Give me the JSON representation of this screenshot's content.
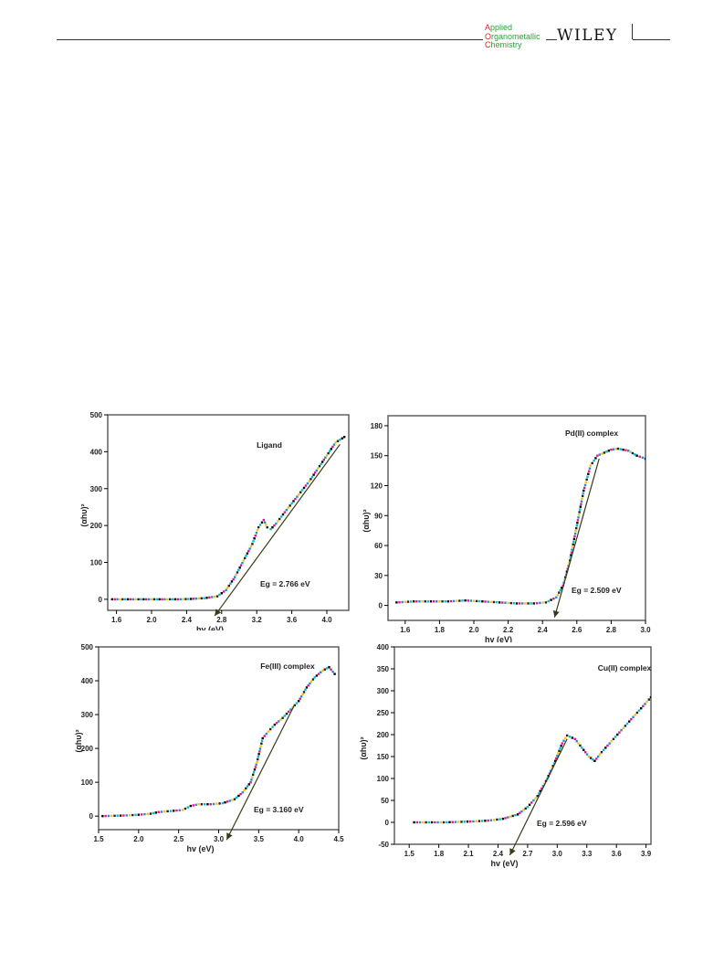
{
  "header": {
    "journal_logo_lines": [
      {
        "initial": "A",
        "rest": "pplied"
      },
      {
        "initial": "O",
        "rest": "rganometallic"
      },
      {
        "initial": "C",
        "rest": "hemistry"
      }
    ],
    "publisher": "WILEY"
  },
  "colors": {
    "axis": "#000000",
    "plot_border": "#555555",
    "fit_line": "#3a3a1a",
    "marker_palette": [
      "#000000",
      "#e8128a",
      "#1e88e5",
      "#f4c20d",
      "#222222",
      "#00bcd4"
    ]
  },
  "chart_data": [
    {
      "type": "scatter",
      "title": "Ligand",
      "xlabel": "hv (eV)",
      "ylabel": "(αhυ)²",
      "xlim": [
        1.5,
        4.25
      ],
      "ylim": [
        -30,
        500
      ],
      "xticks": [
        1.6,
        2.0,
        2.4,
        2.8,
        3.2,
        3.6,
        4.0
      ],
      "xtick_labels": [
        "1.6",
        "2.0",
        "2.4",
        "2.8",
        "3.2",
        "3.6",
        "4.0"
      ],
      "yticks": [
        0,
        100,
        200,
        300,
        400,
        500
      ],
      "ytick_labels": [
        "0",
        "100",
        "200",
        "300",
        "400",
        "500"
      ],
      "annotation": "Eg = 2.766 eV",
      "series": [
        {
          "x": [
            1.55,
            1.7,
            1.85,
            2.0,
            2.15,
            2.3,
            2.45,
            2.6,
            2.75,
            2.85,
            2.95,
            3.05,
            3.15,
            3.22,
            3.28,
            3.32,
            3.36,
            3.42,
            3.5,
            3.6,
            3.7,
            3.8,
            3.9,
            4.0,
            4.1,
            4.2
          ],
          "y": [
            0,
            0,
            0,
            0,
            0,
            0,
            1,
            3,
            8,
            25,
            60,
            105,
            150,
            195,
            215,
            195,
            190,
            205,
            230,
            260,
            290,
            320,
            355,
            390,
            425,
            440
          ]
        }
      ],
      "fit_line": {
        "x": [
          2.72,
          4.15
        ],
        "y": [
          -45,
          420
        ]
      }
    },
    {
      "type": "scatter",
      "title": "Pd(II) complex",
      "xlabel": "hv (eV)",
      "ylabel": "(αhυ)²",
      "xlim": [
        1.5,
        3.0
      ],
      "ylim": [
        -15,
        190
      ],
      "xticks": [
        1.6,
        1.8,
        2.0,
        2.2,
        2.4,
        2.6,
        2.8,
        3.0
      ],
      "xtick_labels": [
        "1.6",
        "1.8",
        "2.0",
        "2.2",
        "2.4",
        "2.6",
        "2.8",
        "3.0"
      ],
      "yticks": [
        0,
        30,
        60,
        90,
        120,
        150,
        180
      ],
      "ytick_labels": [
        "0",
        "30",
        "60",
        "90",
        "120",
        "150",
        "180"
      ],
      "annotation": "Eg = 2.509 eV",
      "series": [
        {
          "x": [
            1.55,
            1.65,
            1.75,
            1.85,
            1.95,
            2.05,
            2.15,
            2.25,
            2.35,
            2.42,
            2.48,
            2.52,
            2.56,
            2.6,
            2.64,
            2.68,
            2.72,
            2.76,
            2.8,
            2.84,
            2.9,
            2.95,
            3.0
          ],
          "y": [
            3,
            4,
            4,
            4,
            5,
            4,
            3,
            2,
            2,
            3,
            8,
            20,
            45,
            80,
            115,
            140,
            150,
            153,
            156,
            157,
            155,
            150,
            147
          ]
        }
      ],
      "fit_line": {
        "x": [
          2.47,
          2.73
        ],
        "y": [
          -12,
          147
        ]
      }
    },
    {
      "type": "scatter",
      "title": "Fe(III) complex",
      "xlabel": "hv (eV)",
      "ylabel": "(αhυ)²",
      "xlim": [
        1.5,
        4.5
      ],
      "ylim": [
        -40,
        500
      ],
      "xticks": [
        1.5,
        2.0,
        2.5,
        3.0,
        3.5,
        4.0,
        4.5
      ],
      "xtick_labels": [
        "1.5",
        "2.0",
        "2.5",
        "3.0",
        "3.5",
        "4.0",
        "4.5"
      ],
      "yticks": [
        0,
        100,
        200,
        300,
        400,
        500
      ],
      "ytick_labels": [
        "0",
        "100",
        "200",
        "300",
        "400",
        "500"
      ],
      "annotation": "Eg = 3.160 eV",
      "series": [
        {
          "x": [
            1.55,
            1.7,
            1.85,
            2.0,
            2.15,
            2.25,
            2.4,
            2.55,
            2.65,
            2.75,
            2.9,
            3.05,
            3.2,
            3.3,
            3.4,
            3.48,
            3.55,
            3.62,
            3.7,
            3.8,
            3.9,
            4.0,
            4.1,
            4.2,
            4.3,
            4.38,
            4.45
          ],
          "y": [
            0,
            1,
            2,
            4,
            7,
            12,
            15,
            18,
            30,
            35,
            35,
            38,
            50,
            70,
            100,
            160,
            230,
            250,
            270,
            290,
            315,
            340,
            380,
            410,
            430,
            440,
            420
          ]
        }
      ],
      "fit_line": {
        "x": [
          3.1,
          3.95
        ],
        "y": [
          -70,
          330
        ]
      }
    },
    {
      "type": "scatter",
      "title": "Cu(II) complex",
      "xlabel": "hv (eV)",
      "ylabel": "(αhυ)²",
      "xlim": [
        1.35,
        3.95
      ],
      "ylim": [
        -50,
        400
      ],
      "xticks": [
        1.5,
        1.8,
        2.1,
        2.4,
        2.7,
        3.0,
        3.3,
        3.6,
        3.9
      ],
      "xtick_labels": [
        "1.5",
        "1.8",
        "2.1",
        "2.4",
        "2.7",
        "3.0",
        "3.3",
        "3.6",
        "3.9"
      ],
      "yticks": [
        -50,
        0,
        50,
        100,
        150,
        200,
        250,
        300,
        350,
        400
      ],
      "ytick_labels": [
        "-50",
        "0",
        "50",
        "100",
        "150",
        "200",
        "250",
        "300",
        "350",
        "400"
      ],
      "annotation": "Eg = 2.596 eV",
      "series": [
        {
          "x": [
            1.55,
            1.7,
            1.85,
            2.0,
            2.15,
            2.3,
            2.45,
            2.6,
            2.7,
            2.8,
            2.9,
            2.98,
            3.05,
            3.1,
            3.18,
            3.25,
            3.32,
            3.38,
            3.45,
            3.55,
            3.65,
            3.75,
            3.85,
            3.95
          ],
          "y": [
            0,
            0,
            0,
            1,
            2,
            4,
            8,
            18,
            35,
            60,
            100,
            140,
            180,
            198,
            190,
            170,
            150,
            140,
            160,
            185,
            210,
            235,
            260,
            285
          ]
        }
      ],
      "fit_line": {
        "x": [
          2.52,
          3.1
        ],
        "y": [
          -75,
          190
        ]
      }
    }
  ]
}
